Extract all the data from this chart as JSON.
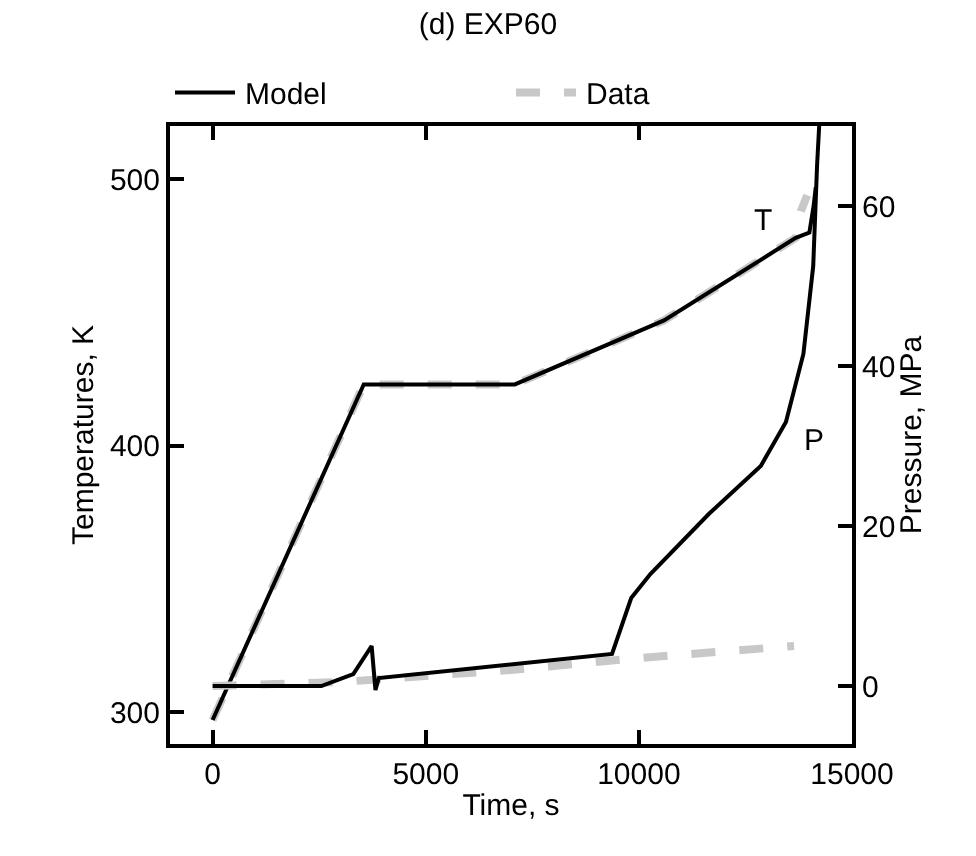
{
  "chart_data": {
    "type": "line",
    "title": "(d) EXP60",
    "xlabel": "Time, s",
    "ylabel": "Temperatures, K",
    "y2label": "Pressure, MPa",
    "xlim": [
      -1000,
      15000
    ],
    "xticks": [
      0,
      5000,
      10000,
      15000
    ],
    "ylim": [
      288,
      520
    ],
    "yticks": [
      300,
      400,
      500
    ],
    "y2lim": [
      -7.25,
      70
    ],
    "y2ticks": [
      0,
      20,
      40,
      60
    ],
    "legend": "top",
    "marker": "none",
    "series": [
      {
        "name": "Data",
        "color": "#c8c8c8",
        "line_style": "dashed",
        "x": [
          0,
          3545,
          7090,
          10590,
          13680,
          13800,
          13950
        ],
        "values": [
          297,
          423,
          423,
          447,
          478,
          488,
          494
        ]
      },
      {
        "name": "Model",
        "color": "#000000",
        "line_style": "solid",
        "x": [
          0,
          3545,
          7090,
          10590,
          13680,
          14000,
          14100,
          14150
        ],
        "values": [
          297,
          423,
          423,
          447,
          478,
          480,
          490,
          497
        ]
      },
      {
        "color": "#c8c8c8",
        "line_style": "dashed",
        "axis": "y2",
        "x": [
          0,
          3000,
          7000,
          10000,
          13640
        ],
        "values": [
          0,
          0.5,
          2,
          3.5,
          5
        ]
      },
      {
        "color": "#000000",
        "line_style": "solid",
        "axis": "y2",
        "x": [
          0,
          2550,
          3300,
          3730,
          3820,
          3900,
          9370,
          9820,
          10270,
          11640,
          12860,
          13450,
          13860,
          14090,
          14180,
          14230
        ],
        "values": [
          0,
          0,
          1.5,
          5,
          -0.5,
          1,
          4,
          11,
          14,
          21.5,
          27.5,
          33,
          41.5,
          52.5,
          65,
          70
        ]
      }
    ],
    "annotations": [
      "T",
      "P"
    ]
  }
}
